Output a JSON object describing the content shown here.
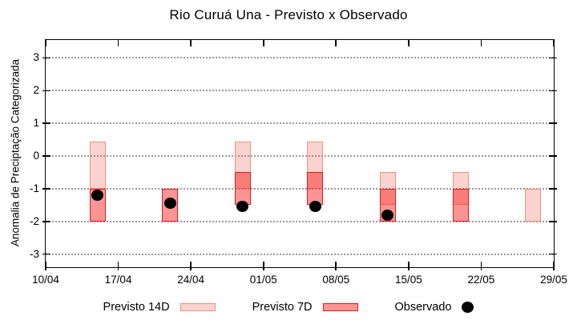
{
  "chart_data": {
    "type": "bar",
    "subtype": "range-boxes-with-observed-points",
    "title": "Rio Curuá Una - Previsto x Observado",
    "ylabel": "Anomalia de Preciptação Categorizada",
    "xlabel": "",
    "x_tick_labels": [
      "10/04",
      "17/04",
      "24/04",
      "01/05",
      "08/05",
      "15/05",
      "22/05",
      "29/05"
    ],
    "x_tick_days": [
      0,
      7,
      14,
      21,
      28,
      35,
      42,
      49
    ],
    "x_range_days": [
      0,
      49
    ],
    "y_ticks": [
      3,
      2,
      1,
      0,
      -1,
      -2,
      -3
    ],
    "ylim": [
      -3.4,
      3.55
    ],
    "grid": "horizontal-dotted",
    "legend_position": "bottom-center",
    "series": [
      {
        "name": "Previsto 14D",
        "type": "box",
        "fill": "rgba(235,85,70,0.26)",
        "border": "#ef9080",
        "boxes": [
          {
            "date": "15/04",
            "day": 5,
            "lo": -1,
            "hi": 0.45
          },
          {
            "date": "29/04",
            "day": 19,
            "lo": -1,
            "hi": 0.45
          },
          {
            "date": "06/05",
            "day": 26,
            "lo": -1,
            "hi": 0.45
          },
          {
            "date": "13/05",
            "day": 33,
            "lo": -1.5,
            "hi": -0.5
          },
          {
            "date": "20/05",
            "day": 40,
            "lo": -1.5,
            "hi": -0.5
          },
          {
            "date": "27/05",
            "day": 47,
            "lo": -2,
            "hi": -1
          }
        ]
      },
      {
        "name": "Previsto 7D",
        "type": "box",
        "fill": "rgba(244,25,22,0.46)",
        "border": "#e11b1b",
        "boxes": [
          {
            "date": "15/04",
            "day": 5,
            "lo": -2,
            "hi": -1
          },
          {
            "date": "22/04",
            "day": 12,
            "lo": -2,
            "hi": -1
          },
          {
            "date": "29/04",
            "day": 19,
            "lo": -1.5,
            "hi": -0.5
          },
          {
            "date": "06/05",
            "day": 26,
            "lo": -1.5,
            "hi": -0.5
          },
          {
            "date": "13/05",
            "day": 33,
            "lo": -2,
            "hi": -1
          },
          {
            "date": "20/05",
            "day": 40,
            "lo": -2,
            "hi": -1
          }
        ]
      },
      {
        "name": "Observado",
        "type": "point",
        "color": "#000000",
        "points": [
          {
            "date": "15/04",
            "day": 5,
            "value": -1.2
          },
          {
            "date": "22/04",
            "day": 12,
            "value": -1.45
          },
          {
            "date": "29/04",
            "day": 19,
            "value": -1.55
          },
          {
            "date": "06/05",
            "day": 26,
            "value": -1.55
          },
          {
            "date": "13/05",
            "day": 33,
            "value": -1.8
          }
        ]
      }
    ]
  }
}
